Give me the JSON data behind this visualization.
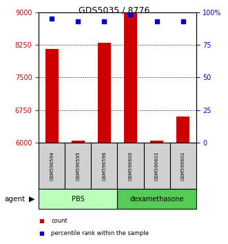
{
  "title": "GDS5035 / 8776",
  "samples": [
    "GSM596594",
    "GSM596595",
    "GSM596596",
    "GSM596600",
    "GSM596601",
    "GSM596602"
  ],
  "count_values": [
    8150,
    6050,
    8300,
    9000,
    6050,
    6600
  ],
  "percentile_values": [
    95,
    93,
    93,
    98,
    93,
    93
  ],
  "ylim_left": [
    6000,
    9000
  ],
  "ylim_right": [
    0,
    100
  ],
  "left_ticks": [
    6000,
    6750,
    7500,
    8250,
    9000
  ],
  "right_ticks": [
    0,
    25,
    50,
    75,
    100
  ],
  "right_tick_labels": [
    "0",
    "25",
    "50",
    "75",
    "100%"
  ],
  "left_color": "#cc0000",
  "right_color": "#0000cc",
  "bar_color": "#cc0000",
  "dot_color": "#0000cc",
  "sample_box_color": "#d0d0d0",
  "pbs_color": "#bbffbb",
  "dex_color": "#55cc55",
  "agent_label": "agent",
  "legend_items": [
    {
      "label": "count",
      "color": "#cc0000"
    },
    {
      "label": "percentile rank within the sample",
      "color": "#0000cc"
    }
  ],
  "bar_width": 0.5,
  "bar_bottom": 6000,
  "figsize": [
    3.31,
    3.54
  ],
  "dpi": 100
}
